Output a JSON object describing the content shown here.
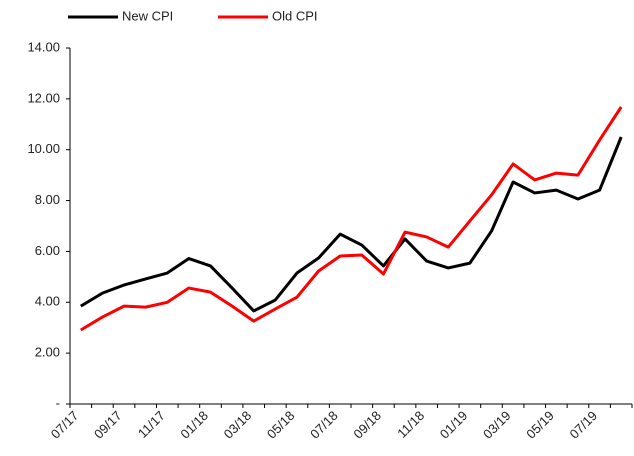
{
  "chart_data": {
    "type": "line",
    "categories": [
      "07/17",
      null,
      "09/17",
      null,
      "11/17",
      null,
      "01/18",
      null,
      "03/18",
      null,
      "05/18",
      null,
      "07/18",
      null,
      "09/18",
      null,
      "11/18",
      null,
      "01/19",
      null,
      "03/19",
      null,
      "05/19",
      null,
      "07/19",
      null
    ],
    "series": [
      {
        "name": "New CPI",
        "color": "#000000",
        "values": [
          3.85,
          4.36,
          4.68,
          4.92,
          5.15,
          5.72,
          5.43,
          4.56,
          3.66,
          4.09,
          5.15,
          5.74,
          6.68,
          6.25,
          5.43,
          6.49,
          5.62,
          5.35,
          5.54,
          6.8,
          8.73,
          8.3,
          8.41,
          8.06,
          8.41,
          10.5
        ]
      },
      {
        "name": "Old CPI",
        "color": "#ff0000",
        "values": [
          2.91,
          3.42,
          3.85,
          3.81,
          4.0,
          4.56,
          4.4,
          3.85,
          3.26,
          3.74,
          4.2,
          5.23,
          5.82,
          5.86,
          5.11,
          6.76,
          6.57,
          6.17,
          7.2,
          8.22,
          9.44,
          8.81,
          9.08,
          9.0,
          10.38,
          11.68
        ]
      }
    ],
    "ylim": [
      0,
      14
    ],
    "yticks": [
      {
        "value": 0,
        "label": "-"
      },
      {
        "value": 2,
        "label": "2.00"
      },
      {
        "value": 4,
        "label": "4.00"
      },
      {
        "value": 6,
        "label": "6.00"
      },
      {
        "value": 8,
        "label": "8.00"
      },
      {
        "value": 10,
        "label": "10.00"
      },
      {
        "value": 12,
        "label": "12.00"
      },
      {
        "value": 14,
        "label": "14.00"
      }
    ],
    "grid": false,
    "legend": "top-left"
  }
}
